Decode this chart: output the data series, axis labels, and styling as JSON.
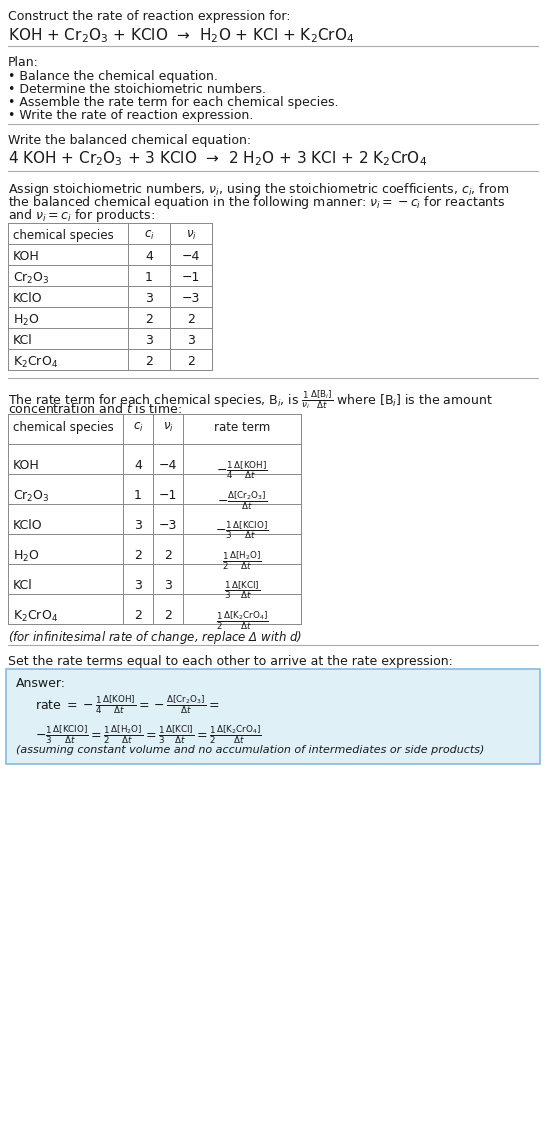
{
  "bg_color": "#ffffff",
  "text_color": "#1a1a1a",
  "title_line1": "Construct the rate of reaction expression for:",
  "reaction_unbalanced": "KOH + Cr$_2$O$_3$ + KClO  →  H$_2$O + KCl + K$_2$CrO$_4$",
  "plan_header": "Plan:",
  "plan_items": [
    "• Balance the chemical equation.",
    "• Determine the stoichiometric numbers.",
    "• Assemble the rate term for each chemical species.",
    "• Write the rate of reaction expression."
  ],
  "balanced_header": "Write the balanced chemical equation:",
  "reaction_balanced": "4 KOH + Cr$_2$O$_3$ + 3 KClO  →  2 H$_2$O + 3 KCl + 2 K$_2$CrO$_4$",
  "table1_headers": [
    "chemical species",
    "$c_i$",
    "$\\nu_i$"
  ],
  "table1_rows": [
    [
      "KOH",
      "4",
      "−4"
    ],
    [
      "Cr$_2$O$_3$",
      "1",
      "−1"
    ],
    [
      "KClO",
      "3",
      "−3"
    ],
    [
      "H$_2$O",
      "2",
      "2"
    ],
    [
      "KCl",
      "3",
      "3"
    ],
    [
      "K$_2$CrO$_4$",
      "2",
      "2"
    ]
  ],
  "table2_headers": [
    "chemical species",
    "$c_i$",
    "$\\nu_i$",
    "rate term"
  ],
  "table2_rows": [
    [
      "KOH",
      "4",
      "−4",
      "$-\\frac{1}{4}\\frac{\\Delta[\\mathrm{KOH}]}{\\Delta t}$"
    ],
    [
      "Cr$_2$O$_3$",
      "1",
      "−1",
      "$-\\frac{\\Delta[\\mathrm{Cr_2O_3}]}{\\Delta t}$"
    ],
    [
      "KClO",
      "3",
      "−3",
      "$-\\frac{1}{3}\\frac{\\Delta[\\mathrm{KClO}]}{\\Delta t}$"
    ],
    [
      "H$_2$O",
      "2",
      "2",
      "$\\frac{1}{2}\\frac{\\Delta[\\mathrm{H_2O}]}{\\Delta t}$"
    ],
    [
      "KCl",
      "3",
      "3",
      "$\\frac{1}{3}\\frac{\\Delta[\\mathrm{KCl}]}{\\Delta t}$"
    ],
    [
      "K$_2$CrO$_4$",
      "2",
      "2",
      "$\\frac{1}{2}\\frac{\\Delta[\\mathrm{K_2CrO_4}]}{\\Delta t}$"
    ]
  ],
  "infinitesimal_note": "(for infinitesimal rate of change, replace Δ with $d$)",
  "set_rate_header": "Set the rate terms equal to each other to arrive at the rate expression:",
  "answer_box_color": "#dff0f7",
  "answer_box_border": "#88bbdd",
  "answer_label": "Answer:",
  "answer_footnote": "(assuming constant volume and no accumulation of intermediates or side products)"
}
